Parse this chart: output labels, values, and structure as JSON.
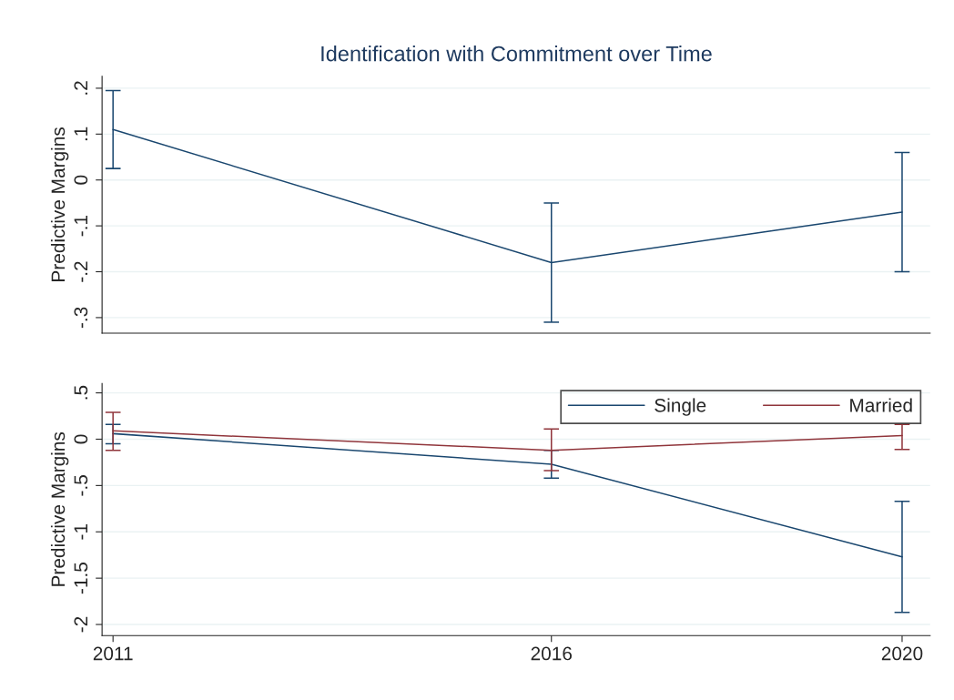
{
  "chart_data": [
    {
      "type": "line",
      "title": "Identification with Commitment over Time",
      "ylabel": "Predictive Margins",
      "x": [
        2011,
        2016,
        2020
      ],
      "xlim": [
        2010.875,
        2020.32
      ],
      "ylim": [
        -0.334,
        0.226
      ],
      "yticks": [
        {
          "value": -0.3,
          "label": "-.3"
        },
        {
          "value": -0.2,
          "label": "-.2"
        },
        {
          "value": -0.1,
          "label": "-.1"
        },
        0,
        {
          "value": 0.1,
          "label": ".1"
        },
        {
          "value": 0.2,
          "label": ".2"
        }
      ],
      "tick_labels": "y",
      "grid": "y",
      "legend": false,
      "series": [
        {
          "color": "#1a476f",
          "values": [
            0.11,
            -0.18,
            -0.07
          ],
          "errors": [
            [
              0.025,
              0.195
            ],
            [
              -0.31,
              -0.05
            ],
            [
              -0.2,
              0.06
            ]
          ]
        }
      ]
    },
    {
      "type": "line",
      "ylabel": "Predictive Margins",
      "x": [
        2011,
        2016,
        2020
      ],
      "xlim": [
        2010.875,
        2020.32
      ],
      "ylim": [
        -2.12,
        0.6
      ],
      "xticks": [
        2011,
        2016,
        2020
      ],
      "yticks": [
        {
          "value": -2,
          "label": "-2"
        },
        {
          "value": -1.5,
          "label": "-1.5"
        },
        {
          "value": -1,
          "label": "-1"
        },
        {
          "value": -0.5,
          "label": "-.5"
        },
        0,
        {
          "value": 0.5,
          "label": ".5"
        }
      ],
      "grid": "y",
      "legend": "top right",
      "series": [
        {
          "name": "Single",
          "color": "#1a476f",
          "values": [
            0.06,
            -0.27,
            -1.27
          ],
          "errors": [
            [
              -0.05,
              0.16
            ],
            [
              -0.42,
              -0.12
            ],
            [
              -1.87,
              -0.67
            ]
          ]
        },
        {
          "name": "Married",
          "color": "#90353b",
          "values": [
            0.09,
            -0.12,
            0.04
          ],
          "errors": [
            [
              -0.12,
              0.29
            ],
            [
              -0.34,
              0.11
            ],
            [
              -0.11,
              0.16
            ]
          ]
        }
      ]
    }
  ]
}
